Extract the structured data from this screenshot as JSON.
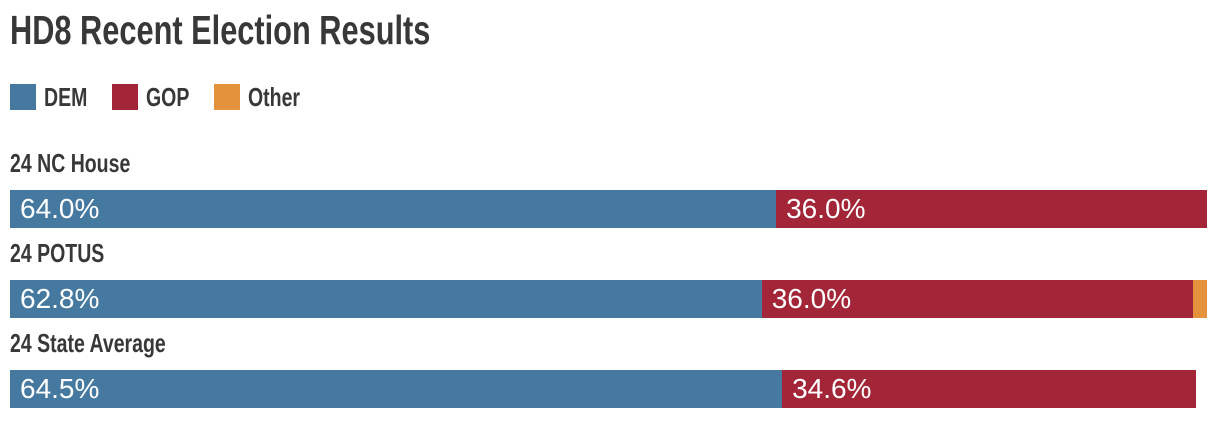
{
  "page": {
    "background": "#ffffff",
    "text_color": "#383838"
  },
  "chart_data": {
    "type": "bar",
    "orientation": "horizontal",
    "stacked": true,
    "title": "HD8 Recent Election Results",
    "legend_position": "top-left",
    "legend": [
      {
        "name": "DEM",
        "color": "#45799f"
      },
      {
        "name": "GOP",
        "color": "#a22637"
      },
      {
        "name": "Other",
        "color": "#e5923c"
      }
    ],
    "categories": [
      "24 NC House",
      "24 POTUS",
      "24 State Average"
    ],
    "series": [
      {
        "name": "DEM",
        "values": [
          64.0,
          62.8,
          64.5
        ]
      },
      {
        "name": "GOP",
        "values": [
          36.0,
          36.0,
          34.6
        ]
      },
      {
        "name": "Other",
        "values": [
          0,
          1.2,
          0
        ]
      }
    ],
    "xlim": [
      0,
      100
    ],
    "grid": false,
    "value_suffix": "%",
    "value_decimals": 1,
    "bar_label_color": "#ffffff",
    "min_labeled_value": 3,
    "visible_bar_labels": [
      [
        "64.0%",
        "36.0%"
      ],
      [
        "62.8%",
        "36.0%"
      ],
      [
        "64.5%",
        "34.6%"
      ]
    ]
  }
}
